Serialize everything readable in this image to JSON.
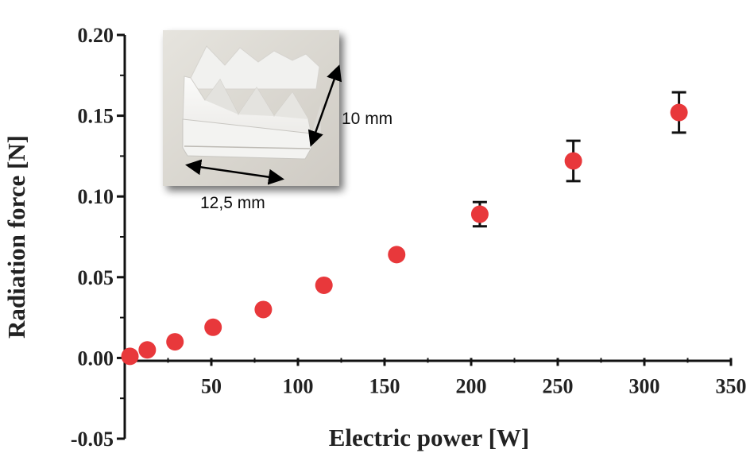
{
  "chart_data": {
    "type": "scatter",
    "xlabel": "Electric power [W]",
    "ylabel": "Radiation force [N]",
    "xlim": [
      0,
      350
    ],
    "ylim": [
      -0.05,
      0.2
    ],
    "x_ticks": [
      50,
      100,
      150,
      200,
      250,
      300,
      350
    ],
    "x_tick_labels": [
      "50",
      "100",
      "150",
      "200",
      "250",
      "300",
      "350"
    ],
    "y_ticks": [
      -0.05,
      0.0,
      0.05,
      0.1,
      0.15,
      0.2
    ],
    "y_tick_labels": [
      "-0.05",
      "0.00",
      "0.05",
      "0.10",
      "0.15",
      "0.20"
    ],
    "grid": false,
    "marker_color": "#e8383b",
    "errorbar_color": "#111111",
    "series": [
      {
        "points": [
          {
            "x": 3,
            "y": 0.001,
            "err": 0
          },
          {
            "x": 13,
            "y": 0.005,
            "err": 0
          },
          {
            "x": 29,
            "y": 0.01,
            "err": 0
          },
          {
            "x": 51,
            "y": 0.019,
            "err": 0
          },
          {
            "x": 80,
            "y": 0.03,
            "err": 0
          },
          {
            "x": 115,
            "y": 0.045,
            "err": 0
          },
          {
            "x": 157,
            "y": 0.064,
            "err": 0
          },
          {
            "x": 205,
            "y": 0.089,
            "err": 0.0075
          },
          {
            "x": 259,
            "y": 0.122,
            "err": 0.0125
          },
          {
            "x": 320,
            "y": 0.152,
            "err": 0.0125
          }
        ]
      }
    ],
    "inset": {
      "description_labels": [
        "10 mm",
        "12,5 mm"
      ]
    }
  }
}
